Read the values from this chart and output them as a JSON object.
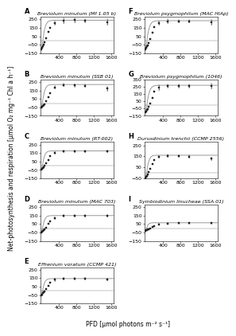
{
  "panels": [
    {
      "label": "A",
      "title": "Breviolum minutum (Mf 1.05 b)",
      "pfd": [
        0,
        15,
        25,
        40,
        60,
        100,
        150,
        200,
        300,
        500,
        750,
        1000,
        1500
      ],
      "net_p": [
        -100,
        -85,
        -70,
        -50,
        -20,
        30,
        100,
        150,
        210,
        235,
        240,
        238,
        220
      ],
      "err": [
        0,
        0,
        0,
        0,
        0,
        0,
        0,
        0,
        20,
        25,
        20,
        20,
        30
      ],
      "ylim": [
        -150,
        280
      ],
      "yticks": [
        -150,
        -50,
        50,
        150,
        250
      ],
      "curve_pmax": 340,
      "curve_ik": 80,
      "curve_rd": 100
    },
    {
      "label": "B",
      "title": "Breviolum minutum (SSB 01)",
      "pfd": [
        0,
        15,
        25,
        40,
        60,
        100,
        150,
        200,
        300,
        500,
        750,
        1000,
        1500
      ],
      "net_p": [
        -50,
        -40,
        -30,
        -20,
        -10,
        20,
        70,
        120,
        185,
        215,
        210,
        205,
        170
      ],
      "err": [
        0,
        0,
        0,
        0,
        0,
        0,
        0,
        0,
        15,
        15,
        15,
        15,
        20
      ],
      "ylim": [
        -150,
        280
      ],
      "yticks": [
        -150,
        -50,
        50,
        150,
        250
      ],
      "curve_pmax": 270,
      "curve_ik": 75,
      "curve_rd": 50
    },
    {
      "label": "C",
      "title": "Breviolum minutum (RT-002)",
      "pfd": [
        0,
        15,
        25,
        40,
        60,
        100,
        150,
        200,
        300,
        500,
        750,
        1000,
        1500
      ],
      "net_p": [
        -50,
        -40,
        -30,
        -15,
        0,
        30,
        70,
        110,
        150,
        170,
        172,
        172,
        170
      ],
      "err": [
        0,
        0,
        0,
        0,
        0,
        0,
        0,
        0,
        10,
        10,
        10,
        10,
        10
      ],
      "ylim": [
        -150,
        280
      ],
      "yticks": [
        -150,
        -50,
        50,
        150,
        250
      ],
      "curve_pmax": 225,
      "curve_ik": 70,
      "curve_rd": 50
    },
    {
      "label": "D",
      "title": "Breviolum minutum (MAC 703)",
      "pfd": [
        0,
        15,
        25,
        40,
        60,
        100,
        150,
        200,
        300,
        500,
        750,
        1000,
        1500
      ],
      "net_p": [
        -50,
        -40,
        -30,
        -20,
        -10,
        10,
        50,
        85,
        120,
        145,
        148,
        148,
        148
      ],
      "err": [
        0,
        0,
        0,
        0,
        0,
        0,
        0,
        0,
        10,
        10,
        10,
        10,
        10
      ],
      "ylim": [
        -150,
        280
      ],
      "yticks": [
        -150,
        -50,
        50,
        150,
        250
      ],
      "curve_pmax": 200,
      "curve_ik": 70,
      "curve_rd": 50
    },
    {
      "label": "E",
      "title": "Effrenium voratum (CCMP 421)",
      "pfd": [
        0,
        15,
        25,
        40,
        60,
        100,
        150,
        200,
        300,
        500,
        750,
        1000,
        1500
      ],
      "net_p": [
        -50,
        -40,
        -30,
        -20,
        -5,
        25,
        60,
        100,
        130,
        142,
        143,
        143,
        135
      ],
      "err": [
        0,
        0,
        0,
        0,
        0,
        0,
        0,
        0,
        10,
        10,
        10,
        10,
        10
      ],
      "ylim": [
        -150,
        280
      ],
      "yticks": [
        -150,
        -50,
        50,
        150,
        250
      ],
      "curve_pmax": 195,
      "curve_ik": 70,
      "curve_rd": 50
    },
    {
      "label": "F",
      "title": "Breviolum psygmophilum (MAC HIAp)",
      "pfd": [
        0,
        15,
        25,
        40,
        60,
        100,
        150,
        200,
        300,
        500,
        750,
        1000,
        1500
      ],
      "net_p": [
        -100,
        -85,
        -70,
        -55,
        -30,
        20,
        90,
        155,
        210,
        230,
        230,
        228,
        215
      ],
      "err": [
        0,
        0,
        0,
        0,
        0,
        0,
        0,
        0,
        20,
        20,
        15,
        15,
        25
      ],
      "ylim": [
        -150,
        280
      ],
      "yticks": [
        -150,
        -50,
        50,
        150,
        250
      ],
      "curve_pmax": 335,
      "curve_ik": 82,
      "curve_rd": 100
    },
    {
      "label": "G",
      "title": "Breviolum psygmophilum (1046)",
      "pfd": [
        0,
        15,
        25,
        40,
        60,
        100,
        150,
        200,
        300,
        500,
        750,
        1000,
        1500
      ],
      "net_p": [
        -100,
        -85,
        -70,
        -55,
        -30,
        20,
        100,
        180,
        240,
        260,
        258,
        258,
        258
      ],
      "err": [
        0,
        0,
        0,
        0,
        0,
        0,
        0,
        0,
        30,
        20,
        20,
        20,
        30
      ],
      "ylim": [
        -150,
        350
      ],
      "yticks": [
        -150,
        -50,
        50,
        150,
        250,
        350
      ],
      "curve_pmax": 370,
      "curve_ik": 85,
      "curve_rd": 100
    },
    {
      "label": "H",
      "title": "Durusdinium trenchii (CCMP 2556)",
      "pfd": [
        0,
        15,
        25,
        40,
        60,
        100,
        150,
        200,
        300,
        500,
        750,
        1000,
        1500
      ],
      "net_p": [
        -50,
        -35,
        -25,
        -10,
        5,
        40,
        80,
        115,
        145,
        155,
        153,
        148,
        130
      ],
      "err": [
        0,
        0,
        0,
        0,
        0,
        0,
        0,
        0,
        10,
        10,
        10,
        10,
        10
      ],
      "ylim": [
        -50,
        280
      ],
      "yticks": [
        -50,
        50,
        150,
        250
      ],
      "curve_pmax": 210,
      "curve_ik": 72,
      "curve_rd": 50
    },
    {
      "label": "I",
      "title": "Symbiodinium linucheae (SSA 01)",
      "pfd": [
        0,
        15,
        25,
        40,
        60,
        100,
        150,
        200,
        300,
        500,
        750,
        1000,
        1500
      ],
      "net_p": [
        -30,
        -25,
        -20,
        -15,
        -10,
        0,
        15,
        28,
        45,
        58,
        60,
        60,
        60
      ],
      "err": [
        0,
        0,
        0,
        0,
        0,
        0,
        0,
        0,
        5,
        5,
        5,
        5,
        5
      ],
      "ylim": [
        -150,
        280
      ],
      "yticks": [
        -150,
        -50,
        50,
        150,
        250
      ],
      "curve_pmax": 95,
      "curve_ik": 55,
      "curve_rd": 30
    }
  ],
  "xlabel": "PFD [μmol photons m⁻² s⁻¹]",
  "ylabel": "Net-photosynthesis and respiration [μmol O₂ mg⁻¹ Chl a h⁻¹]",
  "marker_color": "#222222",
  "line_color": "#999999",
  "bg_color": "#ffffff",
  "panel_label_fontsize": 6,
  "title_fontsize": 4.5,
  "tick_fontsize": 4.5,
  "axis_label_fontsize": 5.5
}
